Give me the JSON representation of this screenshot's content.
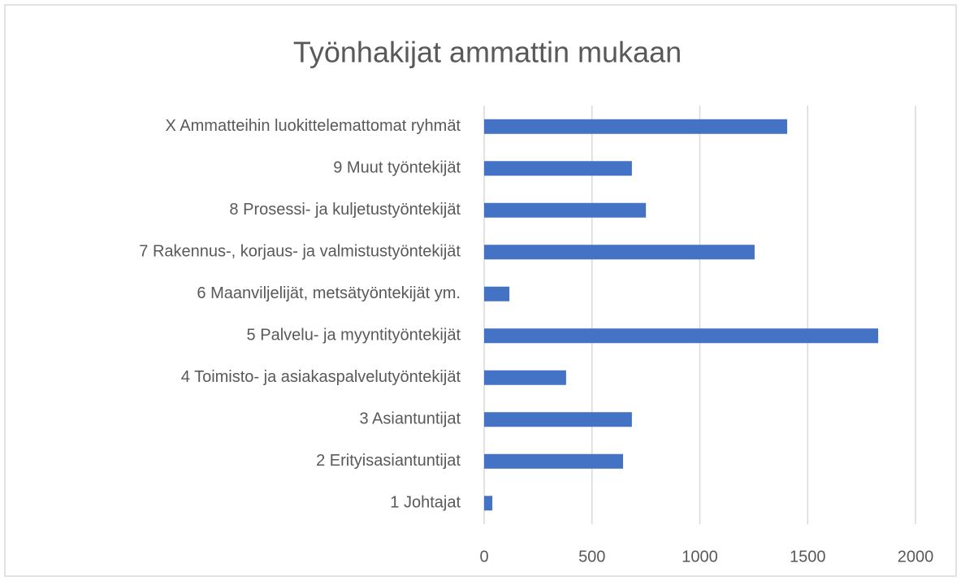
{
  "chart_data": {
    "type": "bar",
    "orientation": "horizontal",
    "title": "Työnhakijat ammattin mukaan",
    "categories": [
      "X Ammatteihin luokittelemattomat ryhmät",
      "9 Muut työntekijät",
      "8 Prosessi- ja kuljetustyöntekijät",
      "7 Rakennus-, korjaus- ja valmistustyöntekijät",
      "6 Maanviljelijät, metsätyöntekijät ym.",
      "5 Palvelu- ja myyntityöntekijät",
      "4 Toimisto- ja asiakaspalvelutyöntekijät",
      "3 Asiantuntijat",
      "2 Erityisasiantuntijat",
      "1 Johtajat"
    ],
    "values": [
      1405,
      685,
      750,
      1254,
      117,
      1827,
      380,
      685,
      644,
      38
    ],
    "color": "#4472c4",
    "xlim": [
      0,
      2000
    ],
    "xticks": [
      0,
      500,
      1000,
      1500,
      2000
    ],
    "grid": true
  }
}
